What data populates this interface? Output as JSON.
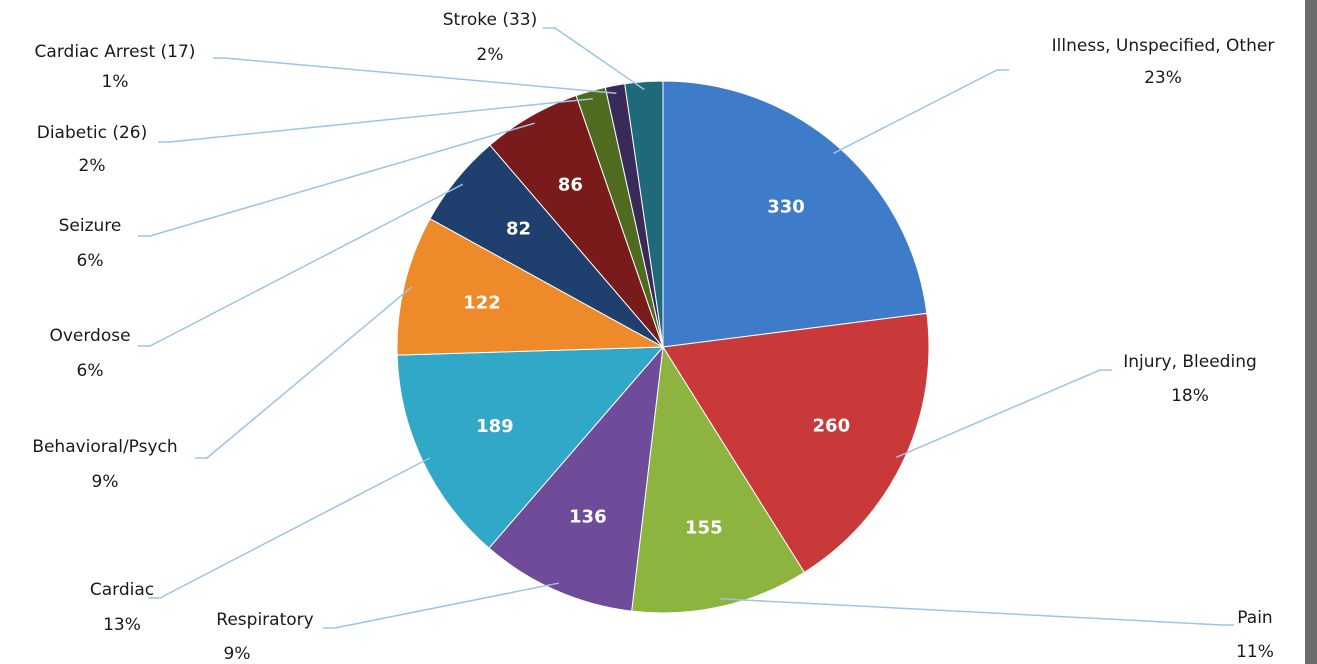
{
  "chart_data": {
    "type": "pie",
    "categories": [
      "Illness, Unspecified, Other",
      "Injury, Bleeding",
      "Pain",
      "Respiratory",
      "Cardiac",
      "Behavioral/Psych",
      "Overdose",
      "Seizure",
      "Diabetic (26)",
      "Cardiac Arrest (17)",
      "Stroke (33)"
    ],
    "values": [
      330,
      260,
      155,
      136,
      189,
      122,
      82,
      86,
      26,
      17,
      33
    ],
    "percent_labels": [
      "23%",
      "18%",
      "11%",
      "9%",
      "13%",
      "9%",
      "6%",
      "6%",
      "2%",
      "1%",
      "2%"
    ],
    "colors": [
      "#3e7bc9",
      "#c9393a",
      "#8db43f",
      "#6e4c9a",
      "#32a8c8",
      "#ef8a2a",
      "#1f3f6e",
      "#7a1b1b",
      "#4f6b1f",
      "#3a2a5a",
      "#1e6a7a"
    ]
  }
}
